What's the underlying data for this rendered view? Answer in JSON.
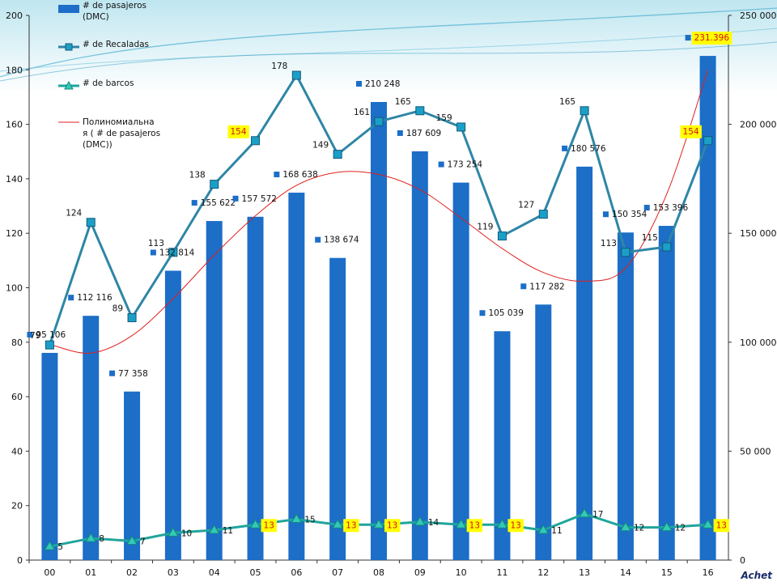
{
  "chart_data": {
    "type": "bar",
    "categories": [
      "00",
      "01",
      "02",
      "03",
      "04",
      "05",
      "06",
      "07",
      "08",
      "09",
      "10",
      "11",
      "12",
      "13",
      "14",
      "15",
      "16"
    ],
    "left_axis": {
      "ylim": [
        0,
        200
      ],
      "ticks": [
        "0",
        "20",
        "40",
        "60",
        "80",
        "100",
        "120",
        "140",
        "160",
        "180",
        "200"
      ]
    },
    "right_axis": {
      "ylim": [
        0,
        250000
      ],
      "ticks": [
        "0",
        "50 000",
        "100 000",
        "150 000",
        "200 000",
        "250 000"
      ]
    },
    "series": [
      {
        "name": "# de pasajeros (DMC)",
        "kind": "bar",
        "axis": "right",
        "color": "#1c6ec7",
        "values": [
          95106,
          112116,
          77358,
          132814,
          155622,
          157572,
          168638,
          138674,
          210248,
          187609,
          173254,
          105039,
          117282,
          180576,
          150354,
          153396,
          231396
        ],
        "labels": [
          "95 106",
          "112 116",
          "77 358",
          "132 814",
          "155 622",
          "157 572",
          "168 638",
          "138 674",
          "210 248",
          "187 609",
          "173 254",
          "105 039",
          "117 282",
          "180 576",
          "150 354",
          "153 396",
          "231.396"
        ]
      },
      {
        "name": "# de Recaladas",
        "kind": "line",
        "axis": "left",
        "color": "#2e86a6",
        "values": [
          79,
          124,
          89,
          113,
          138,
          154,
          178,
          149,
          161,
          165,
          159,
          119,
          127,
          165,
          113,
          115,
          154
        ],
        "labels": [
          "79",
          "124",
          "89",
          "113",
          "138",
          "154",
          "178",
          "149",
          "161",
          "165",
          "159",
          "119",
          "127",
          "165",
          "113",
          "115",
          "154"
        ]
      },
      {
        "name": "# de barcos",
        "kind": "line",
        "axis": "left",
        "color": "#20a59b",
        "values": [
          5,
          8,
          7,
          10,
          11,
          13,
          15,
          13,
          13,
          14,
          13,
          13,
          11,
          17,
          12,
          12,
          13
        ],
        "labels": [
          "5",
          "8",
          "7",
          "10",
          "11",
          "13",
          "15",
          "13",
          "13",
          "14",
          "13",
          "13",
          "11",
          "17",
          "12",
          "12",
          "13"
        ]
      },
      {
        "name": "Полиномиальна я ( # de pasajeros (DMC))",
        "kind": "trendline",
        "axis": "right",
        "color": "#e0201e",
        "values": [
          99000,
          95000,
          103000,
          120000,
          140000,
          158000,
          172000,
          178000,
          177000,
          170000,
          157000,
          143000,
          132000,
          128000,
          134000,
          168000,
          225000
        ]
      }
    ],
    "highlighted_labels": {
      "color": "#ffff00",
      "items": [
        "231.396",
        "154",
        "13"
      ]
    },
    "legend": {
      "position": "top-left",
      "items": [
        {
          "label_line1": "# de pasajeros",
          "label_line2": "(DMC)"
        },
        {
          "label_line1": "# de Recaladas"
        },
        {
          "label_line1": "# de barcos"
        },
        {
          "label_line1": "Полиномиальна",
          "label_line2": "я ( # de pasajeros",
          "label_line3": "(DMC))"
        }
      ]
    },
    "grid": false
  },
  "logo": {
    "text": "Achet"
  }
}
